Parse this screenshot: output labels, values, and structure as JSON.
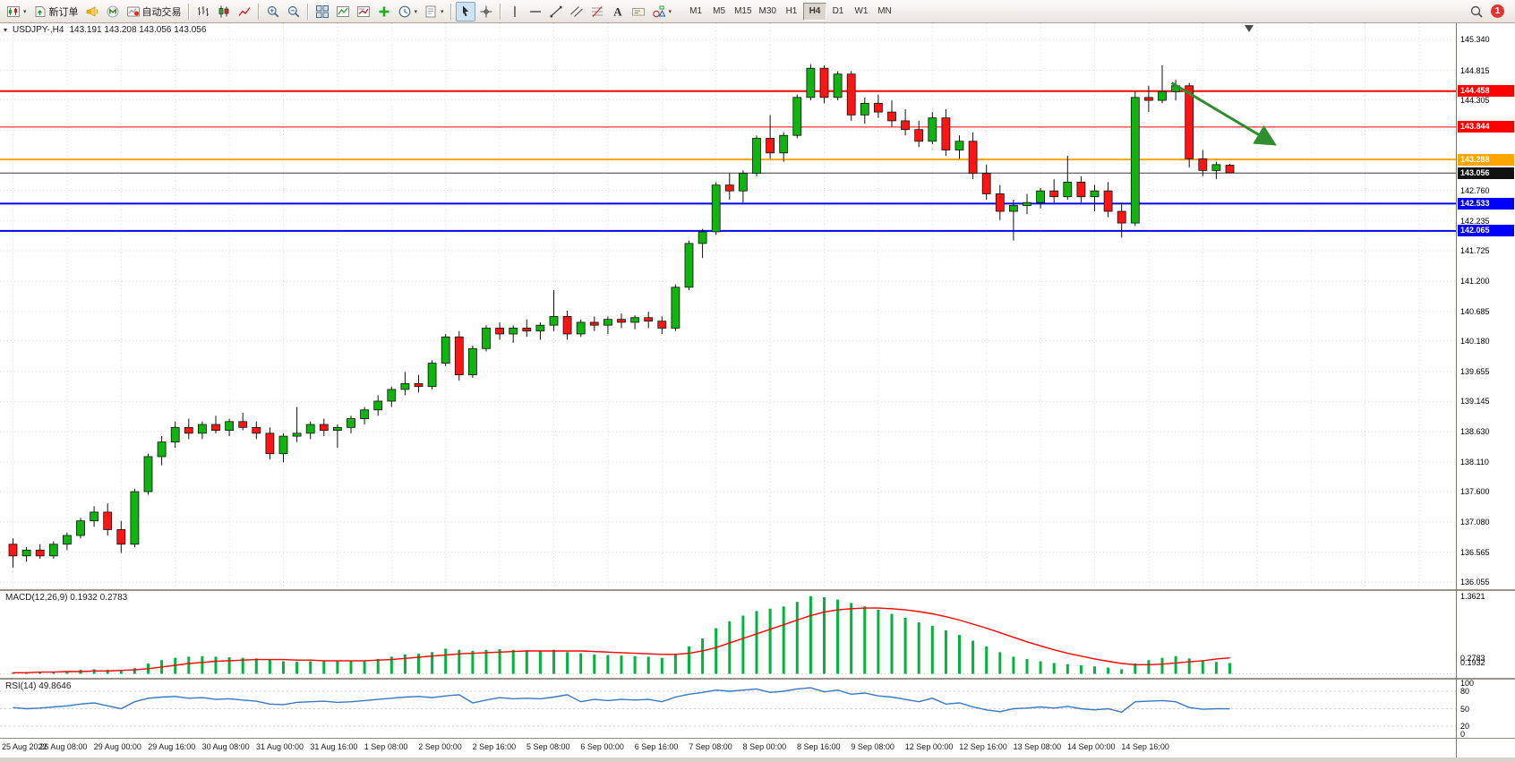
{
  "toolbar": {
    "items": [
      {
        "icon": "new-chart-icon",
        "caret": true
      },
      {
        "icon": "new-order-icon",
        "label": "新订单"
      },
      {
        "icon": "mql5-community-icon"
      },
      {
        "icon": "metaquotes-icon"
      },
      {
        "icon": "autotrading-icon",
        "label": "自动交易"
      },
      {
        "sep": true
      },
      {
        "icon": "bar-chart-icon"
      },
      {
        "icon": "candlestick-chart-icon"
      },
      {
        "icon": "line-chart-icon"
      },
      {
        "sep": true
      },
      {
        "icon": "zoom-in-icon"
      },
      {
        "icon": "zoom-out-icon"
      },
      {
        "sep": true
      },
      {
        "icon": "tile-windows-icon"
      },
      {
        "icon": "indicators-icon"
      },
      {
        "icon": "indicators-list-icon"
      },
      {
        "icon": "add-indicator-icon"
      },
      {
        "icon": "periods-icon",
        "caret": true
      },
      {
        "icon": "templates-icon",
        "caret": true
      },
      {
        "sep": true
      },
      {
        "icon": "cursor-icon",
        "pressed": true
      },
      {
        "icon": "crosshair-icon"
      },
      {
        "sep": true
      },
      {
        "icon": "vline-icon"
      },
      {
        "icon": "hline-icon"
      },
      {
        "icon": "trendline-icon"
      },
      {
        "icon": "channel-icon"
      },
      {
        "icon": "fibonacci-icon"
      },
      {
        "icon": "text-icon"
      },
      {
        "icon": "label-icon"
      },
      {
        "icon": "shapes-icon",
        "caret": true
      }
    ],
    "timeframes": [
      "M1",
      "M5",
      "M15",
      "M30",
      "H1",
      "H4",
      "D1",
      "W1",
      "MN"
    ],
    "active_timeframe": "H4",
    "notification_count": "1"
  },
  "chart": {
    "symbol": "USDJPY-,H4",
    "ohlc": "143.191 143.208 143.056 143.056",
    "hlines": [
      {
        "price": "144.458",
        "color": "#ff0000",
        "width": 2
      },
      {
        "price": "143.844",
        "color": "#ff0000",
        "width": 1
      },
      {
        "price": "143.288",
        "color": "#ffa500",
        "width": 2
      },
      {
        "price": "143.056",
        "color": "#3c3c3c",
        "width": 1,
        "role": "bid"
      },
      {
        "price": "142.533",
        "color": "#0000ff",
        "width": 2
      },
      {
        "price": "142.065",
        "color": "#0000ff",
        "width": 2
      }
    ],
    "arrow": {
      "from_candle": 86,
      "from_price": 144.6,
      "to_candle": 93.6,
      "to_price": 143.55,
      "color": "#2f8f2f"
    }
  },
  "chart_data": {
    "type": "candlestick",
    "symbol": "USDJPY",
    "timeframe": "H4",
    "ylim": [
      136.055,
      145.34
    ],
    "y_ticks": [
      "145.340",
      "144.815",
      "144.305",
      "143.790",
      "143.280",
      "142.760",
      "142.235",
      "141.725",
      "141.200",
      "140.685",
      "140.180",
      "139.655",
      "139.145",
      "138.630",
      "138.110",
      "137.600",
      "137.080",
      "136.565",
      "136.055"
    ],
    "time_labels": [
      "25 Aug 2022",
      "26 Aug 08:00",
      "29 Aug 00:00",
      "29 Aug 16:00",
      "30 Aug 08:00",
      "31 Aug 00:00",
      "31 Aug 16:00",
      "1 Sep 08:00",
      "2 Sep 00:00",
      "2 Sep 16:00",
      "5 Sep 08:00",
      "6 Sep 00:00",
      "6 Sep 16:00",
      "7 Sep 08:00",
      "8 Sep 00:00",
      "8 Sep 16:00",
      "9 Sep 08:00",
      "12 Sep 00:00",
      "12 Sep 16:00",
      "13 Sep 08:00",
      "14 Sep 00:00",
      "14 Sep 16:00"
    ],
    "up_color": "#0fb40f",
    "down_color": "#ff1414",
    "candles_ohlc": [
      [
        136.7,
        136.8,
        136.3,
        136.5
      ],
      [
        136.5,
        136.65,
        136.4,
        136.6
      ],
      [
        136.6,
        136.7,
        136.45,
        136.5
      ],
      [
        136.5,
        136.75,
        136.45,
        136.7
      ],
      [
        136.7,
        136.9,
        136.6,
        136.85
      ],
      [
        136.85,
        137.15,
        136.8,
        137.1
      ],
      [
        137.1,
        137.35,
        137.0,
        137.25
      ],
      [
        137.25,
        137.4,
        136.85,
        136.95
      ],
      [
        136.95,
        137.1,
        136.55,
        136.7
      ],
      [
        136.7,
        137.65,
        136.65,
        137.6
      ],
      [
        137.6,
        138.25,
        137.55,
        138.2
      ],
      [
        138.2,
        138.55,
        138.05,
        138.45
      ],
      [
        138.45,
        138.8,
        138.35,
        138.7
      ],
      [
        138.7,
        138.85,
        138.5,
        138.6
      ],
      [
        138.6,
        138.8,
        138.5,
        138.75
      ],
      [
        138.75,
        138.9,
        138.6,
        138.65
      ],
      [
        138.65,
        138.85,
        138.55,
        138.8
      ],
      [
        138.8,
        138.95,
        138.65,
        138.7
      ],
      [
        138.7,
        138.8,
        138.5,
        138.6
      ],
      [
        138.6,
        138.7,
        138.15,
        138.25
      ],
      [
        138.25,
        138.6,
        138.1,
        138.55
      ],
      [
        138.55,
        139.05,
        138.45,
        138.6
      ],
      [
        138.6,
        138.8,
        138.5,
        138.75
      ],
      [
        138.75,
        138.85,
        138.55,
        138.65
      ],
      [
        138.65,
        138.75,
        138.35,
        138.7
      ],
      [
        138.7,
        138.9,
        138.6,
        138.85
      ],
      [
        138.85,
        139.05,
        138.75,
        139.0
      ],
      [
        139.0,
        139.25,
        138.9,
        139.15
      ],
      [
        139.15,
        139.4,
        139.05,
        139.35
      ],
      [
        139.35,
        139.65,
        139.25,
        139.45
      ],
      [
        139.45,
        139.6,
        139.3,
        139.4
      ],
      [
        139.4,
        139.85,
        139.35,
        139.8
      ],
      [
        139.8,
        140.3,
        139.75,
        140.25
      ],
      [
        140.25,
        140.35,
        139.5,
        139.6
      ],
      [
        139.6,
        140.1,
        139.55,
        140.05
      ],
      [
        140.05,
        140.45,
        140.0,
        140.4
      ],
      [
        140.4,
        140.5,
        140.2,
        140.3
      ],
      [
        140.3,
        140.45,
        140.15,
        140.4
      ],
      [
        140.4,
        140.55,
        140.25,
        140.35
      ],
      [
        140.35,
        140.5,
        140.2,
        140.45
      ],
      [
        140.45,
        141.05,
        140.35,
        140.6
      ],
      [
        140.6,
        140.7,
        140.2,
        140.3
      ],
      [
        140.3,
        140.55,
        140.25,
        140.5
      ],
      [
        140.5,
        140.6,
        140.35,
        140.45
      ],
      [
        140.45,
        140.6,
        140.3,
        140.55
      ],
      [
        140.55,
        140.65,
        140.4,
        140.5
      ],
      [
        140.5,
        140.62,
        140.38,
        140.58
      ],
      [
        140.58,
        140.68,
        140.4,
        140.52
      ],
      [
        140.52,
        140.6,
        140.3,
        140.4
      ],
      [
        140.4,
        141.15,
        140.35,
        141.1
      ],
      [
        141.1,
        141.9,
        141.05,
        141.85
      ],
      [
        141.85,
        142.1,
        141.6,
        142.05
      ],
      [
        142.05,
        142.9,
        142.0,
        142.85
      ],
      [
        142.85,
        143.05,
        142.6,
        142.75
      ],
      [
        142.75,
        143.1,
        142.55,
        143.05
      ],
      [
        143.05,
        143.7,
        143.0,
        143.65
      ],
      [
        143.65,
        144.05,
        143.3,
        143.4
      ],
      [
        143.4,
        143.75,
        143.25,
        143.7
      ],
      [
        143.7,
        144.4,
        143.65,
        144.35
      ],
      [
        144.35,
        144.92,
        144.3,
        144.85
      ],
      [
        144.85,
        144.9,
        144.25,
        144.35
      ],
      [
        144.35,
        144.8,
        144.3,
        144.75
      ],
      [
        144.75,
        144.8,
        143.95,
        144.05
      ],
      [
        144.05,
        144.35,
        143.9,
        144.25
      ],
      [
        144.25,
        144.4,
        144.0,
        144.1
      ],
      [
        144.1,
        144.3,
        143.85,
        143.95
      ],
      [
        143.95,
        144.15,
        143.7,
        143.8
      ],
      [
        143.8,
        143.95,
        143.5,
        143.6
      ],
      [
        143.6,
        144.1,
        143.55,
        144.0
      ],
      [
        144.0,
        144.15,
        143.35,
        143.45
      ],
      [
        143.45,
        143.7,
        143.3,
        143.6
      ],
      [
        143.6,
        143.75,
        142.95,
        143.05
      ],
      [
        143.05,
        143.2,
        142.6,
        142.7
      ],
      [
        142.7,
        142.85,
        142.25,
        142.4
      ],
      [
        142.4,
        142.6,
        141.9,
        142.5
      ],
      [
        142.5,
        142.7,
        142.35,
        142.55
      ],
      [
        142.55,
        142.8,
        142.45,
        142.75
      ],
      [
        142.75,
        142.95,
        142.55,
        142.65
      ],
      [
        142.65,
        143.35,
        142.6,
        142.9
      ],
      [
        142.9,
        143.0,
        142.55,
        142.65
      ],
      [
        142.65,
        142.85,
        142.4,
        142.75
      ],
      [
        142.75,
        142.9,
        142.3,
        142.4
      ],
      [
        142.4,
        142.55,
        141.95,
        142.2
      ],
      [
        142.2,
        144.45,
        142.15,
        144.35
      ],
      [
        144.35,
        144.55,
        144.1,
        144.3
      ],
      [
        144.3,
        144.9,
        144.25,
        144.45
      ],
      [
        144.45,
        144.65,
        144.3,
        144.55
      ],
      [
        144.55,
        144.6,
        143.15,
        143.3
      ],
      [
        143.3,
        143.45,
        143.0,
        143.1
      ],
      [
        143.1,
        143.25,
        142.95,
        143.2
      ],
      [
        143.19,
        143.21,
        143.06,
        143.06
      ]
    ]
  },
  "macd": {
    "label": "MACD(12,26,9) 0.1932 0.2783",
    "hist_color": "#00b43c",
    "signal_color": "#ff0000",
    "axis_labels": [
      {
        "text": "1.3621",
        "value": 1.3621
      },
      {
        "text": "0.2783",
        "value": 0.2783
      },
      {
        "text": "0.1932",
        "value": 0.1932
      }
    ],
    "histogram": [
      0.02,
      0.03,
      0.03,
      0.04,
      0.05,
      0.07,
      0.08,
      0.07,
      0.05,
      0.1,
      0.18,
      0.24,
      0.28,
      0.3,
      0.31,
      0.3,
      0.29,
      0.28,
      0.27,
      0.25,
      0.22,
      0.21,
      0.22,
      0.23,
      0.22,
      0.22,
      0.23,
      0.26,
      0.3,
      0.34,
      0.35,
      0.38,
      0.44,
      0.42,
      0.4,
      0.42,
      0.43,
      0.42,
      0.41,
      0.4,
      0.42,
      0.38,
      0.36,
      0.34,
      0.33,
      0.32,
      0.31,
      0.3,
      0.28,
      0.35,
      0.48,
      0.62,
      0.8,
      0.92,
      1.02,
      1.1,
      1.14,
      1.18,
      1.26,
      1.36,
      1.34,
      1.3,
      1.24,
      1.18,
      1.12,
      1.05,
      0.98,
      0.9,
      0.84,
      0.76,
      0.68,
      0.58,
      0.48,
      0.38,
      0.3,
      0.26,
      0.22,
      0.19,
      0.17,
      0.15,
      0.13,
      0.11,
      0.08,
      0.18,
      0.24,
      0.28,
      0.31,
      0.27,
      0.23,
      0.21,
      0.19
    ],
    "signal": [
      0.02,
      0.02,
      0.03,
      0.03,
      0.04,
      0.04,
      0.05,
      0.05,
      0.06,
      0.07,
      0.09,
      0.12,
      0.15,
      0.18,
      0.2,
      0.22,
      0.23,
      0.24,
      0.25,
      0.25,
      0.25,
      0.24,
      0.24,
      0.23,
      0.23,
      0.23,
      0.23,
      0.24,
      0.25,
      0.27,
      0.29,
      0.31,
      0.33,
      0.35,
      0.36,
      0.37,
      0.38,
      0.39,
      0.4,
      0.4,
      0.4,
      0.4,
      0.4,
      0.39,
      0.38,
      0.37,
      0.36,
      0.35,
      0.34,
      0.34,
      0.36,
      0.4,
      0.46,
      0.54,
      0.62,
      0.7,
      0.78,
      0.86,
      0.94,
      1.02,
      1.08,
      1.12,
      1.14,
      1.15,
      1.15,
      1.14,
      1.12,
      1.09,
      1.05,
      1.0,
      0.94,
      0.87,
      0.8,
      0.72,
      0.64,
      0.56,
      0.49,
      0.42,
      0.36,
      0.31,
      0.26,
      0.22,
      0.18,
      0.16,
      0.16,
      0.17,
      0.19,
      0.21,
      0.23,
      0.26,
      0.28
    ]
  },
  "rsi": {
    "label": "RSI(14) 49.8646",
    "line_color": "#3a77c2",
    "levels": [
      80,
      50,
      20
    ],
    "axis_labels": [
      {
        "text": "100",
        "value": 100
      },
      {
        "text": "80",
        "value": 80
      },
      {
        "text": "50",
        "value": 50
      },
      {
        "text": "20",
        "value": 20
      },
      {
        "text": "0",
        "value": 0
      }
    ],
    "values": [
      52,
      50,
      51,
      53,
      55,
      58,
      60,
      55,
      50,
      62,
      68,
      70,
      71,
      68,
      69,
      66,
      67,
      65,
      63,
      58,
      57,
      61,
      62,
      63,
      61,
      62,
      64,
      66,
      68,
      70,
      71,
      69,
      72,
      74,
      60,
      65,
      69,
      67,
      68,
      67,
      70,
      74,
      62,
      66,
      64,
      66,
      65,
      66,
      62,
      70,
      75,
      78,
      82,
      80,
      82,
      84,
      78,
      80,
      84,
      86,
      79,
      82,
      75,
      77,
      72,
      70,
      66,
      62,
      68,
      58,
      60,
      53,
      48,
      45,
      50,
      51,
      53,
      51,
      54,
      50,
      48,
      50,
      44,
      62,
      63,
      64,
      62,
      52,
      49,
      50,
      49.86
    ]
  }
}
